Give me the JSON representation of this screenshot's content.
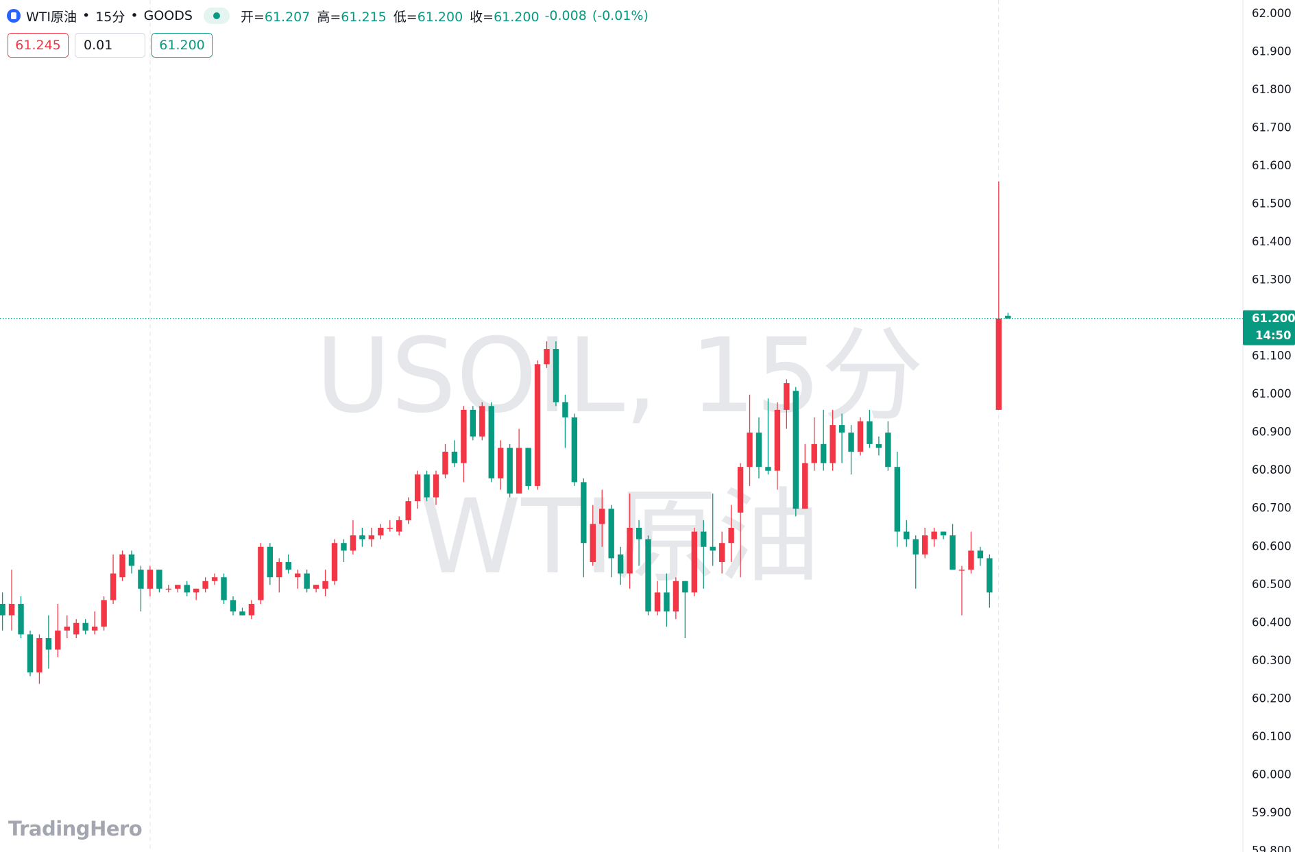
{
  "header": {
    "symbol": "WTI原油",
    "separator": "•",
    "interval": "15分",
    "exchange": "GOODS",
    "ohlc": [
      {
        "label": "开=",
        "value": "61.207"
      },
      {
        "label": "高=",
        "value": "61.215"
      },
      {
        "label": "低=",
        "value": "61.200"
      },
      {
        "label": "收=",
        "value": "61.200"
      }
    ],
    "change": "-0.008",
    "change_percent": "(-0.01%)"
  },
  "order_panel": {
    "sell": "61.245",
    "quantity": "0.01",
    "buy": "61.200"
  },
  "watermark": {
    "line1": "USOIL, 15分",
    "line2": "WTI原油"
  },
  "logo": "TradingHero",
  "chart_data": {
    "type": "candlestick",
    "up_color": "#f23645",
    "down_color": "#089981",
    "open": [
      60.45,
      60.42,
      60.45,
      60.37,
      60.27,
      60.36,
      60.33,
      60.38,
      60.37,
      60.4,
      60.38,
      60.39,
      60.46,
      60.52,
      60.58,
      60.54,
      60.49,
      60.54,
      60.49,
      60.49,
      60.5,
      60.48,
      60.49,
      60.51,
      60.52,
      60.46,
      60.43,
      60.42,
      60.46,
      60.6,
      60.52,
      60.56,
      60.52,
      60.53,
      60.49,
      60.49,
      60.51,
      60.61,
      60.59,
      60.63,
      60.62,
      60.63,
      60.65,
      60.64,
      60.67,
      60.72,
      60.79,
      60.73,
      60.79,
      60.85,
      60.82,
      60.96,
      60.89,
      60.97,
      60.78,
      60.86,
      60.74,
      60.86,
      60.76,
      61.08,
      61.12,
      60.98,
      60.94,
      60.77,
      60.56,
      60.66,
      60.7,
      60.58,
      60.53,
      60.65,
      60.62,
      60.43,
      60.48,
      60.43,
      60.51,
      60.48,
      60.64,
      60.6,
      60.56,
      60.61,
      60.69,
      60.81,
      60.9,
      60.81,
      60.8,
      60.96,
      61.01,
      60.7,
      60.82,
      60.87,
      60.82,
      60.92,
      60.9,
      60.85,
      60.93,
      60.87,
      60.9,
      60.81,
      60.64,
      60.62,
      60.58,
      60.62,
      60.64,
      60.63,
      60.54,
      60.54,
      60.59,
      60.57,
      60.96,
      61.207
    ],
    "high": [
      60.48,
      60.54,
      60.47,
      60.38,
      60.37,
      60.42,
      60.45,
      60.42,
      60.41,
      60.41,
      60.43,
      60.47,
      60.58,
      60.59,
      60.59,
      60.55,
      60.55,
      60.54,
      60.5,
      60.5,
      60.51,
      60.49,
      60.52,
      60.53,
      60.53,
      60.47,
      60.44,
      60.46,
      60.61,
      60.61,
      60.57,
      60.58,
      60.54,
      60.54,
      60.5,
      60.54,
      60.62,
      60.62,
      60.67,
      60.65,
      60.65,
      60.66,
      60.67,
      60.68,
      60.73,
      60.8,
      60.8,
      60.8,
      60.87,
      60.88,
      60.97,
      60.97,
      60.98,
      60.98,
      60.88,
      60.87,
      60.91,
      60.86,
      61.09,
      61.14,
      61.14,
      61.0,
      60.95,
      60.78,
      60.71,
      60.75,
      60.71,
      60.6,
      60.74,
      60.67,
      60.63,
      60.51,
      60.53,
      60.52,
      60.51,
      60.65,
      60.67,
      60.74,
      60.64,
      60.71,
      60.82,
      61.0,
      60.94,
      60.99,
      60.98,
      61.04,
      61.02,
      60.87,
      60.94,
      60.96,
      60.96,
      60.95,
      60.92,
      60.94,
      60.96,
      60.89,
      60.93,
      60.85,
      60.67,
      60.63,
      60.65,
      60.65,
      60.64,
      60.66,
      60.55,
      60.64,
      60.6,
      60.58,
      61.56,
      61.215
    ],
    "low": [
      60.38,
      60.38,
      60.36,
      60.26,
      60.24,
      60.28,
      60.31,
      60.36,
      60.36,
      60.37,
      60.37,
      60.38,
      60.45,
      60.51,
      60.53,
      60.43,
      60.47,
      60.48,
      60.48,
      60.48,
      60.47,
      60.46,
      60.48,
      60.5,
      60.45,
      60.42,
      60.42,
      60.41,
      60.45,
      60.5,
      60.48,
      60.53,
      60.49,
      60.48,
      60.48,
      60.47,
      60.5,
      60.56,
      60.58,
      60.6,
      60.6,
      60.62,
      60.64,
      60.63,
      60.66,
      60.7,
      60.72,
      60.71,
      60.78,
      60.81,
      60.77,
      60.88,
      60.88,
      60.77,
      60.75,
      60.73,
      60.74,
      60.75,
      60.75,
      61.07,
      60.97,
      60.86,
      60.76,
      60.52,
      60.55,
      60.6,
      60.52,
      60.5,
      60.49,
      60.55,
      60.42,
      60.42,
      60.39,
      60.41,
      60.36,
      60.47,
      60.49,
      60.55,
      60.53,
      60.56,
      60.52,
      60.76,
      60.78,
      60.79,
      60.75,
      60.91,
      60.68,
      60.7,
      60.8,
      60.8,
      60.8,
      60.82,
      60.79,
      60.84,
      60.86,
      60.84,
      60.8,
      60.6,
      60.6,
      60.49,
      60.57,
      60.6,
      60.62,
      60.54,
      60.42,
      60.53,
      60.55,
      60.44,
      60.96,
      61.2
    ],
    "close": [
      60.42,
      60.45,
      60.37,
      60.27,
      60.36,
      60.33,
      60.38,
      60.39,
      60.4,
      60.38,
      60.39,
      60.46,
      60.53,
      60.58,
      60.55,
      60.49,
      60.54,
      60.49,
      60.49,
      60.5,
      60.48,
      60.49,
      60.51,
      60.52,
      60.46,
      60.43,
      60.42,
      60.45,
      60.6,
      60.52,
      60.56,
      60.54,
      60.53,
      60.49,
      60.5,
      60.51,
      60.61,
      60.59,
      60.63,
      60.62,
      60.63,
      60.65,
      60.65,
      60.67,
      60.72,
      60.79,
      60.73,
      60.79,
      60.85,
      60.82,
      60.96,
      60.89,
      60.97,
      60.78,
      60.86,
      60.74,
      60.86,
      60.76,
      61.08,
      61.12,
      60.98,
      60.94,
      60.77,
      60.61,
      60.66,
      60.7,
      60.57,
      60.53,
      60.65,
      60.62,
      60.43,
      60.48,
      60.43,
      60.51,
      60.48,
      60.64,
      60.6,
      60.59,
      60.61,
      60.65,
      60.81,
      60.9,
      60.81,
      60.8,
      60.96,
      61.03,
      60.7,
      60.82,
      60.87,
      60.82,
      60.92,
      60.9,
      60.85,
      60.93,
      60.87,
      60.86,
      60.81,
      60.64,
      60.62,
      60.58,
      60.63,
      60.64,
      60.63,
      60.54,
      60.54,
      60.59,
      60.57,
      60.48,
      61.2,
      61.2
    ],
    "ylim": [
      59.798,
      62.037
    ],
    "yticks": [
      {
        "value": 59.8,
        "label": "59.800"
      },
      {
        "value": 59.9,
        "label": "59.900"
      },
      {
        "value": 60.0,
        "label": "60.000"
      },
      {
        "value": 60.1,
        "label": "60.100"
      },
      {
        "value": 60.2,
        "label": "60.200"
      },
      {
        "value": 60.3,
        "label": "60.300"
      },
      {
        "value": 60.4,
        "label": "60.400"
      },
      {
        "value": 60.5,
        "label": "60.500"
      },
      {
        "value": 60.6,
        "label": "60.600"
      },
      {
        "value": 60.7,
        "label": "60.700"
      },
      {
        "value": 60.8,
        "label": "60.800"
      },
      {
        "value": 60.9,
        "label": "60.900"
      },
      {
        "value": 61.0,
        "label": "61.000"
      },
      {
        "value": 61.1,
        "label": "61.100"
      },
      {
        "value": 61.3,
        "label": "61.300"
      },
      {
        "value": 61.4,
        "label": "61.400"
      },
      {
        "value": 61.5,
        "label": "61.500"
      },
      {
        "value": 61.6,
        "label": "61.600"
      },
      {
        "value": 61.7,
        "label": "61.700"
      },
      {
        "value": 61.8,
        "label": "61.800"
      },
      {
        "value": 61.9,
        "label": "61.900"
      },
      {
        "value": 62.0,
        "label": "62.000"
      }
    ],
    "last_price": {
      "value": 61.2,
      "label": "61.200"
    },
    "countdown": "14:50"
  }
}
